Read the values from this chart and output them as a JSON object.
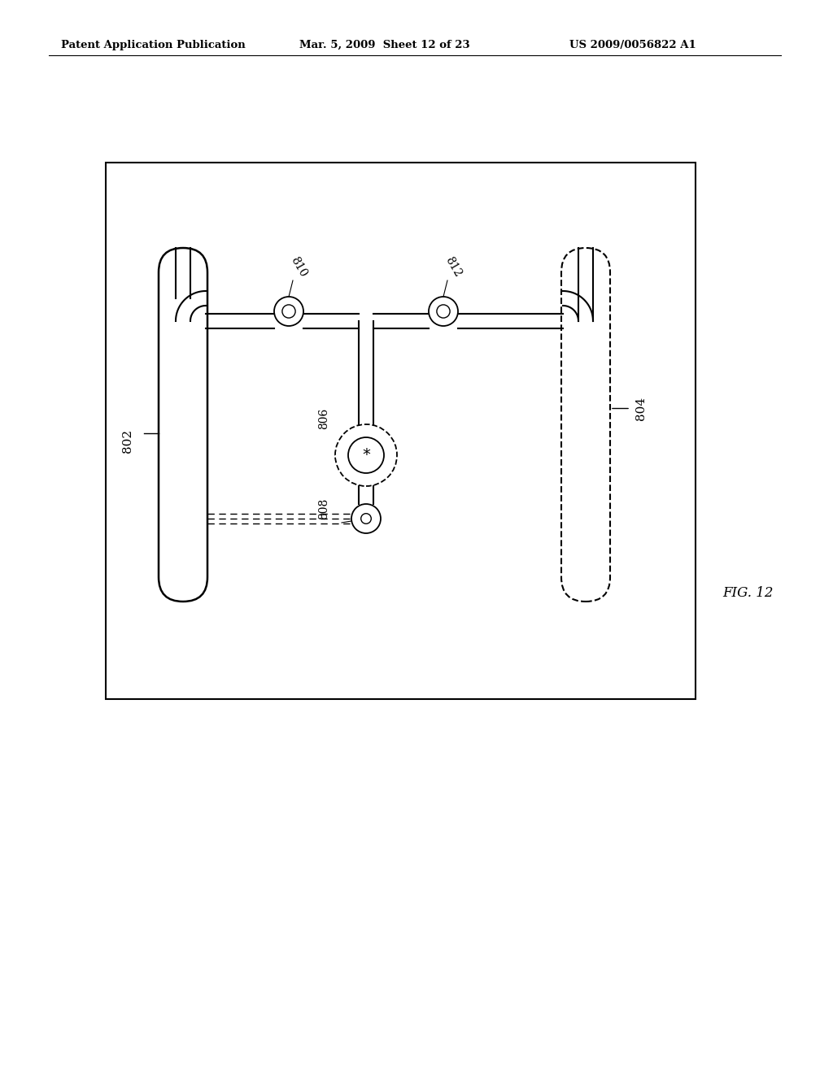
{
  "bg_color": "#ffffff",
  "header_text1": "Patent Application Publication",
  "header_text2": "Mar. 5, 2009  Sheet 12 of 23",
  "header_text3": "US 2009/0056822 A1",
  "fig_label": "FIG. 12",
  "label_802": "802",
  "label_804": "804",
  "label_806": "806",
  "label_808": "808",
  "label_810": "810",
  "label_812": "812"
}
